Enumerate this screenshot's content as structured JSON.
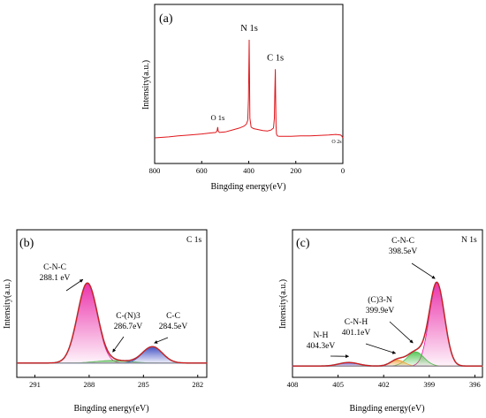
{
  "chart_data": [
    {
      "id": "a",
      "type": "line",
      "panel_label": "(a)",
      "xlabel": "Bingding energy(eV)",
      "ylabel": "Intensity(a.u.)",
      "xlim": [
        800,
        0
      ],
      "xticks": [
        800,
        600,
        400,
        200,
        0
      ],
      "color": "#e0161b",
      "series": [
        {
          "x": [
            800,
            740,
            700,
            650,
            600,
            560,
            540,
            535,
            532,
            530,
            525,
            500,
            470,
            440,
            420,
            410,
            404,
            401,
            399,
            398,
            397,
            395,
            390,
            380,
            360,
            340,
            320,
            305,
            300,
            295,
            291,
            289,
            287,
            286,
            284,
            282,
            278,
            270,
            250,
            220,
            180,
            140,
            100,
            60,
            30,
            10,
            5,
            0
          ],
          "y": [
            0.0,
            0.01,
            0.02,
            0.03,
            0.04,
            0.05,
            0.055,
            0.07,
            0.11,
            0.07,
            0.055,
            0.06,
            0.08,
            0.1,
            0.12,
            0.14,
            0.18,
            0.4,
            0.84,
            1.0,
            0.7,
            0.2,
            0.11,
            0.095,
            0.085,
            0.075,
            0.07,
            0.08,
            0.09,
            0.1,
            0.2,
            0.5,
            0.7,
            0.45,
            0.12,
            0.04,
            0.02,
            0.015,
            0.015,
            0.015,
            0.02,
            0.02,
            0.025,
            0.03,
            0.035,
            0.03,
            0.02,
            0.0
          ]
        }
      ],
      "annotations": [
        {
          "text": "N 1s",
          "x": 398,
          "size": "large"
        },
        {
          "text": "C 1s",
          "x": 287,
          "size": "large"
        },
        {
          "text": "O 1s",
          "x": 532,
          "size": "medium"
        },
        {
          "text": "O 2s",
          "x": 20,
          "size": "small"
        }
      ]
    },
    {
      "id": "b",
      "type": "line",
      "panel_label": "(b)",
      "corner_label": "C 1s",
      "xlabel": "Bingding energy(eV)",
      "ylabel": "Intensity(a.u.)",
      "xlim": [
        292,
        281.5
      ],
      "xticks": [
        291,
        288,
        285,
        282
      ],
      "envelope_color": "#e0161b",
      "raw_color": "#6c6c6c",
      "background_color": "#9a9a9a",
      "baseline": 0.08,
      "components": [
        {
          "name": "C-N-C",
          "center": 288.1,
          "height": 0.78,
          "width": 0.55,
          "color": "#e8129e"
        },
        {
          "name": "C-(N)3",
          "center": 286.7,
          "height": 0.025,
          "width": 0.9,
          "color": "#4fb84f"
        },
        {
          "name": "C-C",
          "center": 284.5,
          "height": 0.16,
          "width": 0.55,
          "color": "#2f3fbf"
        }
      ],
      "annotations": [
        {
          "lines": [
            "C-N-C",
            "288.1 eV"
          ],
          "peak": 288.1
        },
        {
          "lines": [
            "C-(N)3",
            "286.7eV"
          ],
          "peak": 286.7
        },
        {
          "lines": [
            "C-C",
            "284.5eV"
          ],
          "peak": 284.5
        }
      ]
    },
    {
      "id": "c",
      "type": "line",
      "panel_label": "(c)",
      "corner_label": "N 1s",
      "xlabel": "Bingding energy(eV)",
      "ylabel": "Intensity(a.u.)",
      "xlim": [
        408,
        395.5
      ],
      "xticks": [
        408,
        405,
        402,
        399,
        396
      ],
      "envelope_color": "#e0161b",
      "raw_color": "#6c6c6c",
      "background_color": "#9a9a9a",
      "baseline": 0.05,
      "components": [
        {
          "name": "C-N-C",
          "center": 398.5,
          "height": 0.82,
          "width": 0.5,
          "color": "#e8129e"
        },
        {
          "name": "(C)3-N",
          "center": 399.9,
          "height": 0.14,
          "width": 0.55,
          "color": "#4fb84f"
        },
        {
          "name": "C-N-H",
          "center": 401.1,
          "height": 0.06,
          "width": 0.45,
          "color": "#f2a23c"
        },
        {
          "name": "N-H",
          "center": 404.3,
          "height": 0.035,
          "width": 0.65,
          "color": "#5b3fbf"
        }
      ],
      "annotations": [
        {
          "lines": [
            "C-N-C",
            "398.5eV"
          ],
          "peak": 398.5
        },
        {
          "lines": [
            "(C)3-N",
            "399.9eV"
          ],
          "peak": 399.9
        },
        {
          "lines": [
            "C-N-H",
            "401.1eV"
          ],
          "peak": 401.1
        },
        {
          "lines": [
            "N-H",
            "404.3eV"
          ],
          "peak": 404.3
        }
      ]
    }
  ]
}
